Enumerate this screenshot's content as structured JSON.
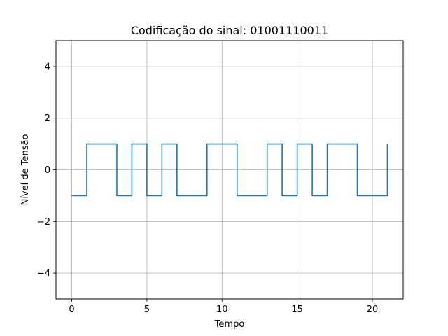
{
  "chart_data": {
    "type": "line",
    "step": "post",
    "title": "Codificação do sinal: 01001110011",
    "xlabel": "Tempo",
    "ylabel": "Nível de Tensão",
    "xlim": [
      -1.05,
      22.05
    ],
    "ylim": [
      -5,
      5
    ],
    "xticks": [
      0,
      5,
      10,
      15,
      20
    ],
    "xtick_labels": [
      "0",
      "5",
      "10",
      "15",
      "20"
    ],
    "yticks": [
      -4,
      -2,
      0,
      2,
      4
    ],
    "ytick_labels": [
      "−4",
      "−2",
      "0",
      "2",
      "4"
    ],
    "grid": true,
    "colors": {
      "line": "#1f77b4",
      "grid": "#b0b0b0",
      "axes": "#000000"
    },
    "series": [
      {
        "x": [
          0,
          1,
          2,
          3,
          4,
          5,
          6,
          7,
          8,
          9,
          10,
          11,
          12,
          13,
          14,
          15,
          16,
          17,
          18,
          19,
          20,
          21
        ],
        "y": [
          -1,
          1,
          1,
          -1,
          1,
          -1,
          1,
          -1,
          -1,
          1,
          1,
          -1,
          -1,
          1,
          -1,
          1,
          -1,
          1,
          1,
          -1,
          -1,
          1
        ]
      }
    ]
  }
}
